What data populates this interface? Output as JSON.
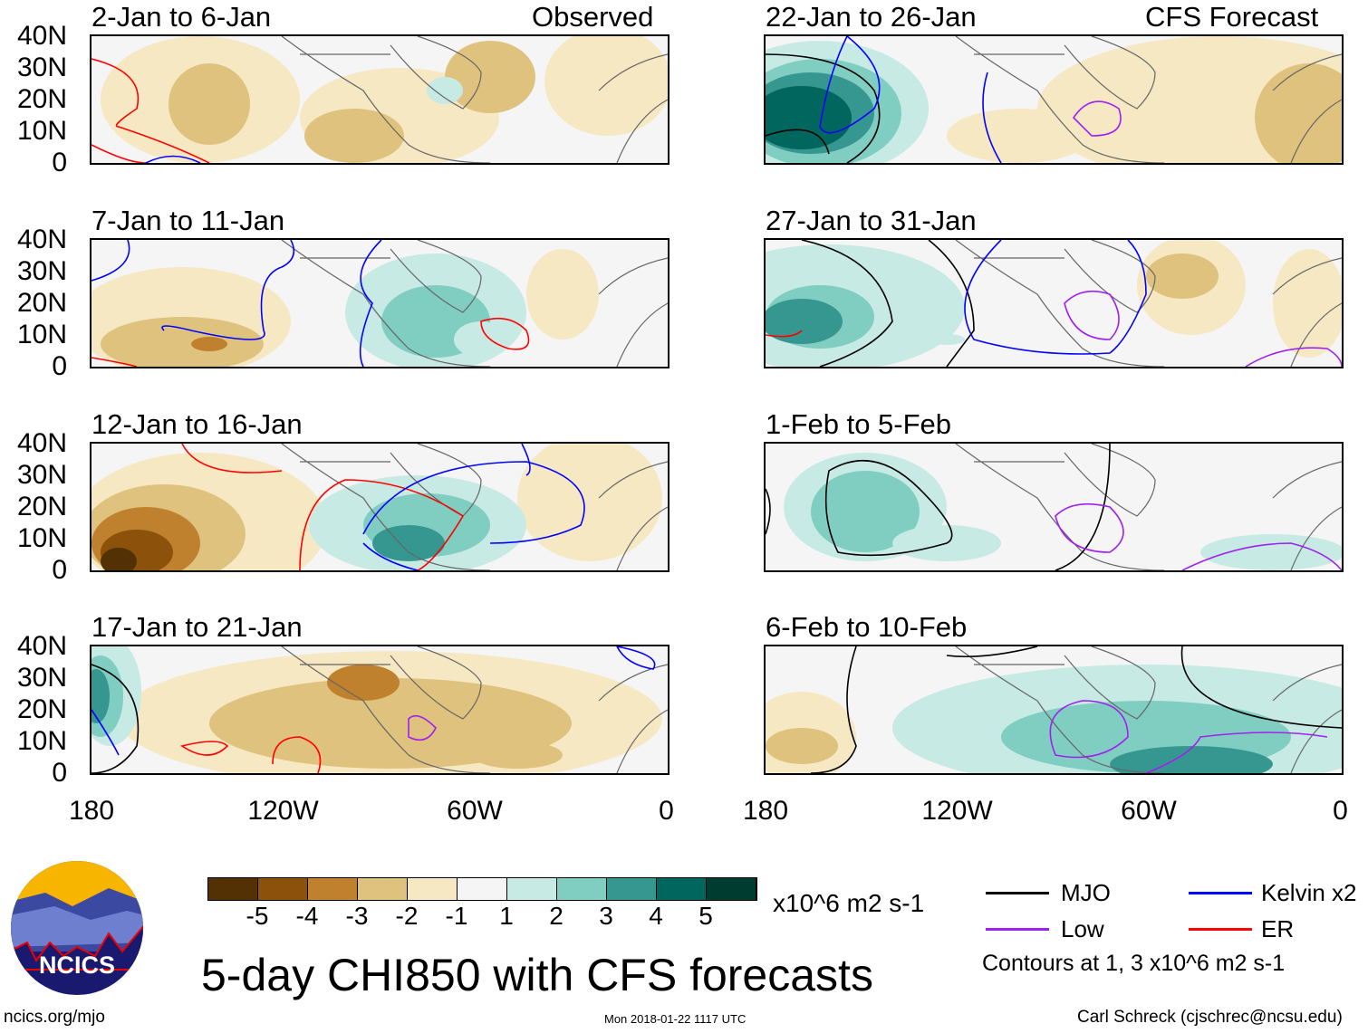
{
  "panels_left_header": "Observed",
  "panels_right_header": "CFS Forecast",
  "panels": [
    {
      "title": "2-Jan to 6-Jan"
    },
    {
      "title": "22-Jan to 26-Jan"
    },
    {
      "title": "7-Jan to 11-Jan"
    },
    {
      "title": "27-Jan to 31-Jan"
    },
    {
      "title": "12-Jan to 16-Jan"
    },
    {
      "title": "1-Feb to 5-Feb"
    },
    {
      "title": "17-Jan to 21-Jan"
    },
    {
      "title": "6-Feb to 10-Feb"
    }
  ],
  "lat_labels": [
    "40N",
    "30N",
    "20N",
    "10N",
    "0"
  ],
  "lon_labels": [
    "180",
    "120W",
    "60W",
    "0"
  ],
  "colorbar": {
    "colors": [
      "#543005",
      "#8c510a",
      "#bf812d",
      "#dfc27d",
      "#f6e8c3",
      "#f5f5f5",
      "#c7eae5",
      "#80cdc1",
      "#35978f",
      "#01665e",
      "#003c30"
    ],
    "labels": [
      "-5",
      "-4",
      "-3",
      "-2",
      "-1",
      "1",
      "2",
      "3",
      "4",
      "5"
    ],
    "units": "x10^6 m2 s-1"
  },
  "legend": {
    "items": [
      {
        "label": "MJO",
        "color": "#000000"
      },
      {
        "label": "Kelvin x2",
        "color": "#0000ff"
      },
      {
        "label": "Low",
        "color": "#a020f0"
      },
      {
        "label": "ER",
        "color": "#ff0000"
      }
    ],
    "note": "Contours at 1, 3 x10^6 m2 s-1"
  },
  "title": "5-day CHI850 with CFS forecasts",
  "logo_text": "NCICS",
  "footer": {
    "left": "ncics.org/mjo",
    "center": "Mon 2018-01-22 1117 UTC",
    "right": "Carl Schreck (cjschrec@ncsu.edu)"
  }
}
